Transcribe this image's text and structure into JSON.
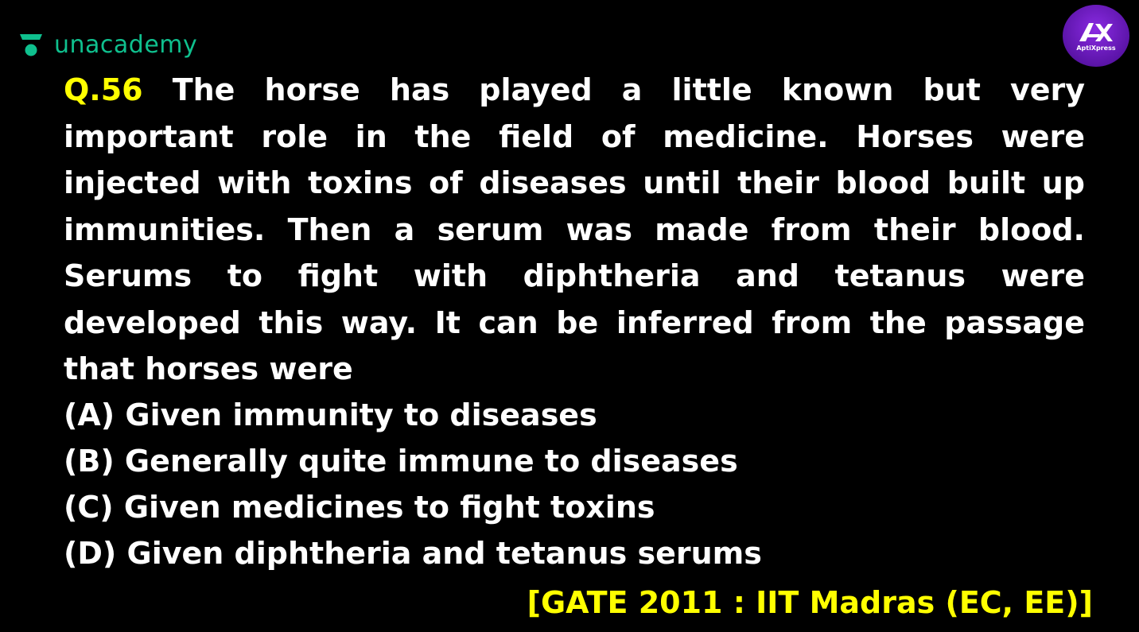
{
  "brand": {
    "name": "unacademy",
    "icon": "unacademy-logo-icon",
    "color": "#0fc08e"
  },
  "badge": {
    "mark": "AX",
    "label": "AptiXpress",
    "color": "#6a1bbf"
  },
  "question": {
    "number": "Q.56",
    "text": "The horse has played a little known but very important role in the field of medicine. Horses were injected with toxins of diseases until their blood built up immunities. Then a serum was made from their blood. Serums to fight with diphtheria and tetanus were developed this way. It can be inferred from the passage that horses were",
    "number_color": "#ffff00"
  },
  "options": [
    "(A) Given immunity to diseases",
    "(B) Generally quite immune to diseases",
    "(C) Given medicines to fight toxins",
    "(D) Given diphtheria and tetanus serums"
  ],
  "source": "[GATE 2011 : IIT Madras (EC, EE)]"
}
